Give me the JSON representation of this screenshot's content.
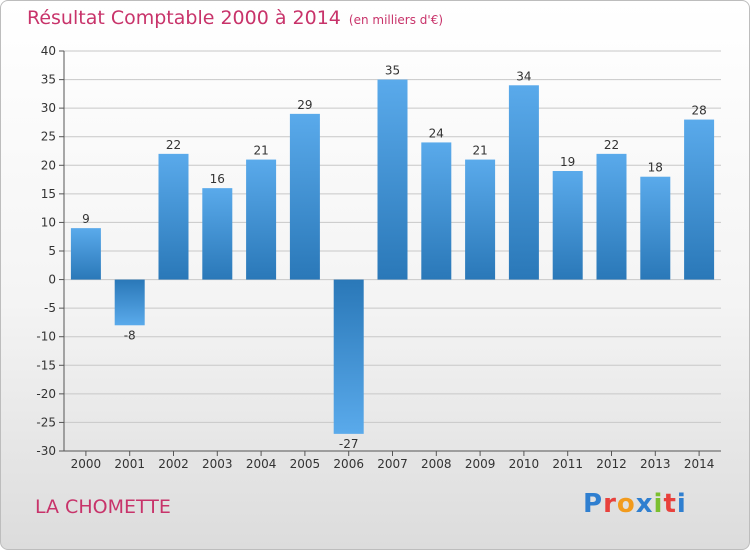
{
  "header": {
    "title": "Résultat Comptable 2000 à 2014",
    "unit": "(en milliers d'€)"
  },
  "footer": {
    "commune": "LA CHOMETTE",
    "logo_text": "Proxiti",
    "logo_colors": [
      "#2f7fd0",
      "#e8413c",
      "#f29b1d",
      "#2f7fd0",
      "#7bbf2f",
      "#e8413c",
      "#2f7fd0"
    ]
  },
  "chart_data": {
    "type": "bar",
    "categories": [
      "2000",
      "2001",
      "2002",
      "2003",
      "2004",
      "2005",
      "2006",
      "2007",
      "2008",
      "2009",
      "2010",
      "2011",
      "2012",
      "2013",
      "2014"
    ],
    "values": [
      9,
      -8,
      22,
      16,
      21,
      29,
      -27,
      35,
      24,
      21,
      34,
      19,
      22,
      18,
      28
    ],
    "ylim": [
      -30,
      40
    ],
    "yticks": [
      -30,
      -25,
      -20,
      -15,
      -10,
      -5,
      0,
      5,
      10,
      15,
      20,
      25,
      30,
      35,
      40
    ],
    "grid": "horizontal",
    "colors": {
      "bar_light": "#5aaaeb",
      "bar_dark": "#2a78b8",
      "grid": "#c8c8c8",
      "axis": "#555555",
      "label": "#333333"
    }
  }
}
